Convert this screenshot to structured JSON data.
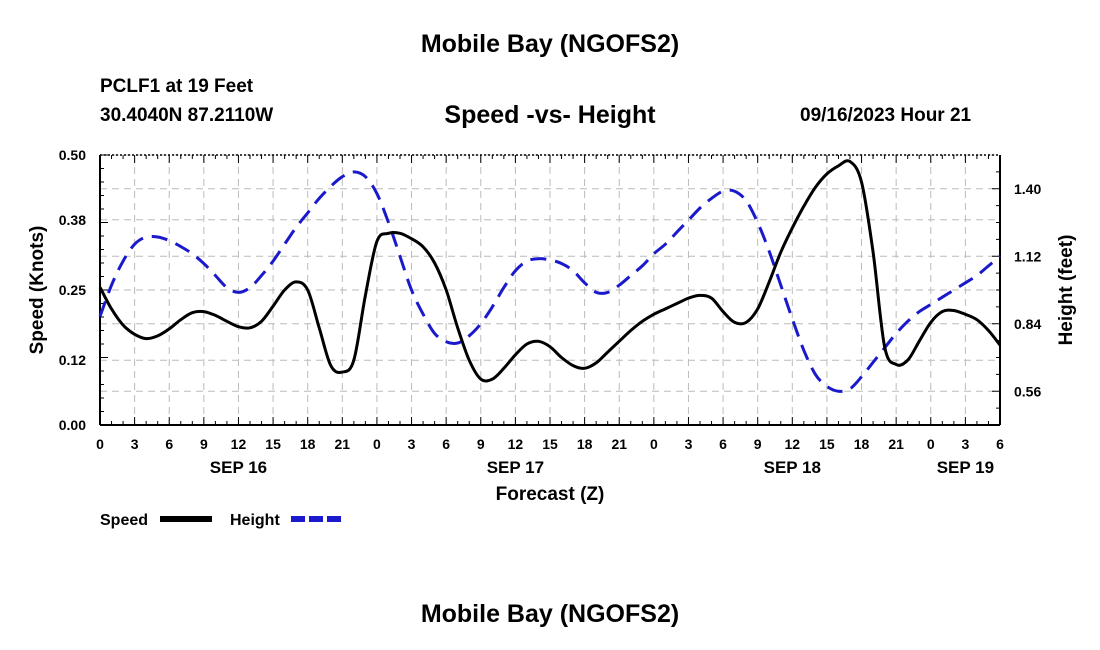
{
  "header": {
    "title": "Mobile Bay (NGOFS2)",
    "station": "PCLF1 at 19 Feet",
    "coords": "30.4040N  87.2110W",
    "chart_title": "Speed -vs- Height",
    "datetime": "09/16/2023 Hour 21",
    "bottom_title": "Mobile Bay (NGOFS2)"
  },
  "colors": {
    "speed": "#000000",
    "height": "#1a1acc",
    "grid": "#bbbbbb"
  },
  "chart_data": {
    "type": "line",
    "title": "Speed -vs- Height",
    "xlabel": "Forecast (Z)",
    "ylabel": "Speed (Knots)",
    "y2label": "Height (feet)",
    "x_unit": "hours from SEP 16 00Z",
    "xlim": [
      0,
      78
    ],
    "ylim": [
      0,
      0.5
    ],
    "y2lim": [
      0.42,
      1.54
    ],
    "x_ticks": [
      0,
      3,
      6,
      9,
      12,
      15,
      18,
      21,
      24,
      27,
      30,
      33,
      36,
      39,
      42,
      45,
      48,
      51,
      54,
      57,
      60,
      63,
      66,
      69,
      72,
      75,
      78
    ],
    "x_tick_labels": [
      "0",
      "3",
      "6",
      "9",
      "12",
      "15",
      "18",
      "21",
      "0",
      "3",
      "6",
      "9",
      "12",
      "15",
      "18",
      "21",
      "0",
      "3",
      "6",
      "9",
      "12",
      "15",
      "18",
      "21",
      "0",
      "3",
      "6"
    ],
    "day_labels": [
      {
        "x": 12,
        "label": "SEP 16"
      },
      {
        "x": 36,
        "label": "SEP 17"
      },
      {
        "x": 60,
        "label": "SEP 18"
      },
      {
        "x": 75,
        "label": "SEP 19"
      }
    ],
    "y_ticks": [
      0.0,
      0.12,
      0.25,
      0.38,
      0.5
    ],
    "y_tick_labels": [
      "0.00",
      "0.12",
      "0.25",
      "0.38",
      "0.50"
    ],
    "y2_ticks": [
      0.56,
      0.84,
      1.12,
      1.4
    ],
    "y2_tick_labels": [
      "0.56",
      "0.84",
      "1.12",
      "1.40"
    ],
    "grid": true,
    "series": [
      {
        "name": "Speed",
        "axis": "left",
        "style": "solid",
        "x": [
          0,
          1,
          2,
          3,
          4,
          5,
          6,
          7,
          8,
          9,
          10,
          11,
          12,
          13,
          14,
          15,
          16,
          17,
          18,
          19,
          20,
          21,
          22,
          23,
          24,
          25,
          26,
          27,
          28,
          29,
          30,
          31,
          32,
          33,
          34,
          35,
          36,
          37,
          38,
          39,
          40,
          41,
          42,
          43,
          44,
          45,
          46,
          47,
          48,
          49,
          50,
          51,
          52,
          53,
          54,
          55,
          56,
          57,
          58,
          59,
          60,
          61,
          62,
          63,
          64,
          65,
          66,
          67,
          68,
          69,
          70,
          71,
          72,
          73,
          74,
          75,
          76,
          77,
          78
        ],
        "values": [
          0.255,
          0.215,
          0.185,
          0.168,
          0.16,
          0.165,
          0.178,
          0.195,
          0.208,
          0.21,
          0.203,
          0.192,
          0.182,
          0.18,
          0.192,
          0.22,
          0.25,
          0.265,
          0.25,
          0.18,
          0.11,
          0.098,
          0.12,
          0.24,
          0.34,
          0.355,
          0.355,
          0.345,
          0.33,
          0.3,
          0.25,
          0.18,
          0.12,
          0.085,
          0.085,
          0.105,
          0.13,
          0.15,
          0.155,
          0.145,
          0.125,
          0.11,
          0.105,
          0.115,
          0.135,
          0.155,
          0.175,
          0.192,
          0.205,
          0.215,
          0.225,
          0.235,
          0.24,
          0.235,
          0.21,
          0.19,
          0.19,
          0.215,
          0.265,
          0.32,
          0.365,
          0.405,
          0.44,
          0.465,
          0.48,
          0.488,
          0.45,
          0.32,
          0.145,
          0.112,
          0.12,
          0.155,
          0.19,
          0.21,
          0.212,
          0.205,
          0.195,
          0.175,
          0.148
        ]
      },
      {
        "name": "Height",
        "axis": "right",
        "style": "dashed",
        "x": [
          0,
          1,
          2,
          3,
          4,
          5,
          6,
          7,
          8,
          9,
          10,
          11,
          12,
          13,
          14,
          15,
          16,
          17,
          18,
          19,
          20,
          21,
          22,
          23,
          24,
          25,
          26,
          27,
          28,
          29,
          30,
          31,
          32,
          33,
          34,
          35,
          36,
          37,
          38,
          39,
          40,
          41,
          42,
          43,
          44,
          45,
          46,
          47,
          48,
          49,
          50,
          51,
          52,
          53,
          54,
          55,
          56,
          57,
          58,
          59,
          60,
          61,
          62,
          63,
          64,
          65,
          66,
          67,
          68,
          69,
          70,
          71,
          72,
          73,
          74,
          75,
          76,
          77,
          78
        ],
        "values": [
          0.87,
          1.0,
          1.1,
          1.17,
          1.2,
          1.2,
          1.185,
          1.16,
          1.13,
          1.09,
          1.04,
          0.99,
          0.97,
          0.99,
          1.04,
          1.1,
          1.17,
          1.24,
          1.3,
          1.36,
          1.41,
          1.45,
          1.47,
          1.45,
          1.38,
          1.26,
          1.12,
          0.98,
          0.88,
          0.8,
          0.765,
          0.76,
          0.79,
          0.84,
          0.91,
          0.99,
          1.06,
          1.1,
          1.11,
          1.105,
          1.09,
          1.06,
          1.01,
          0.97,
          0.97,
          1.0,
          1.04,
          1.08,
          1.13,
          1.17,
          1.22,
          1.27,
          1.32,
          1.36,
          1.39,
          1.39,
          1.35,
          1.26,
          1.14,
          1.0,
          0.86,
          0.73,
          0.63,
          0.58,
          0.56,
          0.57,
          0.62,
          0.68,
          0.74,
          0.8,
          0.85,
          0.89,
          0.92,
          0.95,
          0.98,
          1.01,
          1.04,
          1.08,
          1.12
        ]
      }
    ],
    "legend": {
      "placement": "bottom-left",
      "items": [
        {
          "label": "Speed",
          "style": "solid"
        },
        {
          "label": "Height",
          "style": "dashed"
        }
      ]
    }
  }
}
